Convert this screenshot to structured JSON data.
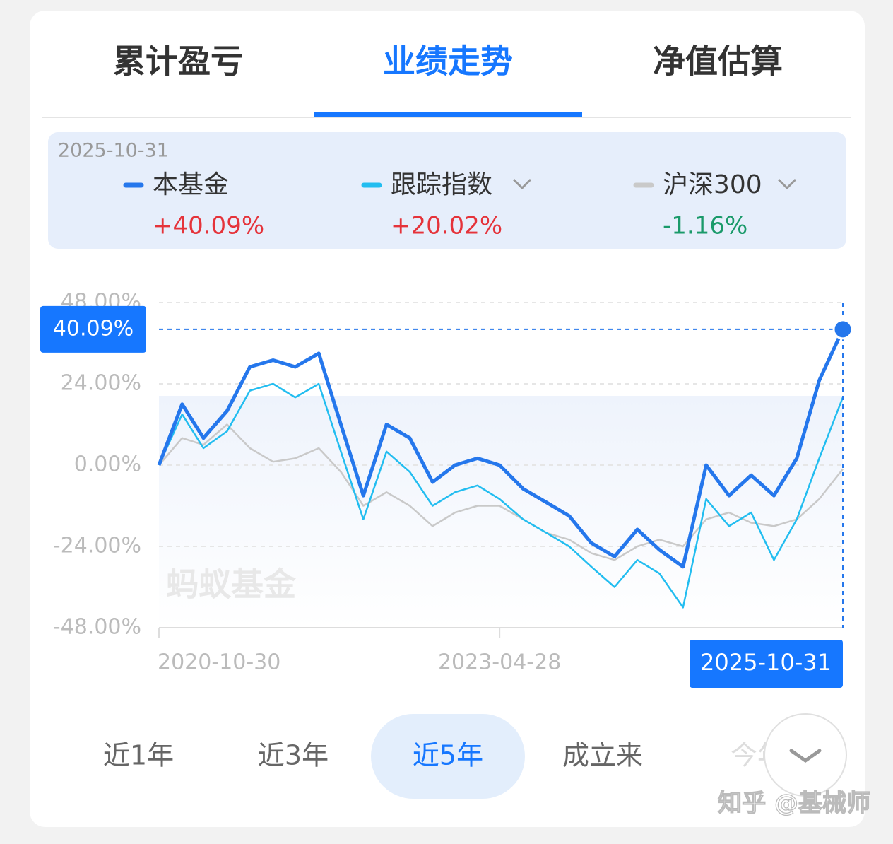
{
  "tabs": {
    "items": [
      "累计盈亏",
      "业绩走势",
      "净值估算"
    ],
    "active": 1
  },
  "chart_data": {
    "type": "line",
    "summary_date": "2025-10-31",
    "legend_values": [
      "+40.09%",
      "+20.02%",
      "-1.16%"
    ],
    "x": [
      "2020-10-30",
      "2020-12-31",
      "2021-02-26",
      "2021-04-30",
      "2021-06-30",
      "2021-08-31",
      "2021-10-29",
      "2021-12-31",
      "2022-02-28",
      "2022-04-29",
      "2022-06-30",
      "2022-08-31",
      "2022-10-31",
      "2022-12-30",
      "2023-02-28",
      "2023-04-28",
      "2023-06-30",
      "2023-08-31",
      "2023-10-31",
      "2023-12-29",
      "2024-02-29",
      "2024-04-30",
      "2024-06-28",
      "2024-08-30",
      "2024-10-31",
      "2024-12-31",
      "2025-02-28",
      "2025-04-30",
      "2025-06-30",
      "2025-08-29",
      "2025-10-31"
    ],
    "series": [
      {
        "name": "本基金",
        "color": "#2577ec",
        "values": [
          0,
          18,
          8,
          16,
          29,
          31,
          29,
          33,
          12,
          -9,
          12,
          8,
          -5,
          0,
          2,
          0,
          -7,
          -11,
          -15,
          -23,
          -27,
          -19,
          -25,
          -30,
          0,
          -9,
          -3,
          -9,
          2,
          25,
          40.09
        ]
      },
      {
        "name": "跟踪指数",
        "color": "#22bdf0",
        "values": [
          0,
          15,
          5,
          10,
          22,
          24,
          20,
          24,
          4,
          -16,
          4,
          -2,
          -12,
          -8,
          -6,
          -10,
          -16,
          -20,
          -24,
          -30,
          -36,
          -28,
          -32,
          -42,
          -10,
          -18,
          -14,
          -28,
          -16,
          2,
          20.02
        ]
      },
      {
        "name": "沪深300",
        "color": "#c9c9c9",
        "values": [
          0,
          8,
          6,
          12,
          5,
          1,
          2,
          5,
          -2,
          -12,
          -8,
          -12,
          -18,
          -14,
          -12,
          -12,
          -16,
          -20,
          -22,
          -26,
          -28,
          -24,
          -22,
          -24,
          -16,
          -14,
          -17,
          -18,
          -16,
          -10,
          -1.16
        ]
      }
    ],
    "ylim": [
      -48,
      48
    ],
    "yticks": [
      {
        "value": 48,
        "label": "48.00%"
      },
      {
        "value": 24,
        "label": "24.00%"
      },
      {
        "value": 0,
        "label": "0.00%"
      },
      {
        "value": -24,
        "label": "-24.00%"
      },
      {
        "value": -48,
        "label": "-48.00%"
      }
    ],
    "xlim": [
      "2020-10-30",
      "2025-10-31"
    ],
    "xticks": [
      "2020-10-30",
      "2023-04-28"
    ],
    "grid": true,
    "crosshair": {
      "x": "2025-10-31",
      "value": 40.09,
      "label": "40.09%"
    },
    "watermark": "蚂蚁基金"
  },
  "ranges": {
    "items": [
      "近1年",
      "近3年",
      "近5年",
      "成立来",
      "今年"
    ],
    "active": 2
  },
  "footer": {
    "watermark": "知乎 @基械师"
  }
}
